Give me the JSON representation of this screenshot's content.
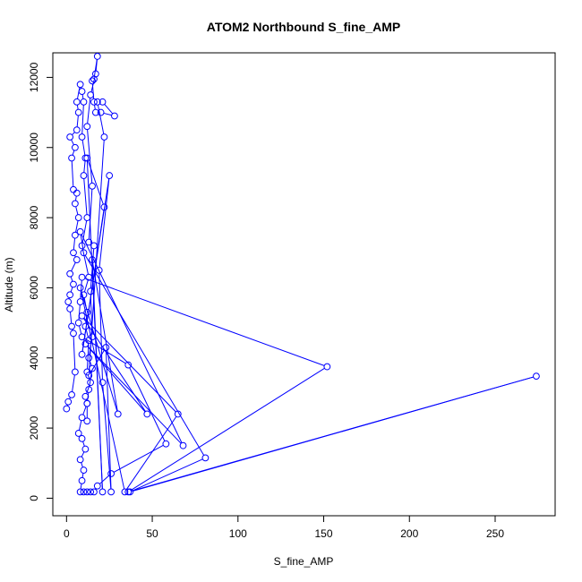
{
  "chart_data": {
    "type": "line",
    "title": "ATOM2 Northbound S_fine_AMP",
    "xlabel": "S_fine_AMP",
    "ylabel": "Altitude (m)",
    "xlim": [
      -8,
      285
    ],
    "ylim": [
      -500,
      12700
    ],
    "xticks": [
      0,
      50,
      100,
      150,
      200,
      250
    ],
    "yticks": [
      0,
      2000,
      4000,
      6000,
      8000,
      10000,
      12000
    ],
    "grid": false,
    "legend": "none",
    "color": "#0000ff",
    "series": [
      {
        "points": [
          [
            0,
            2550
          ],
          [
            1,
            2750
          ],
          [
            3,
            2950
          ],
          [
            5,
            3600
          ],
          [
            4,
            4700
          ],
          [
            3,
            4900
          ],
          [
            2,
            5400
          ],
          [
            1,
            5600
          ],
          [
            2,
            5800
          ],
          [
            4,
            6100
          ],
          [
            2,
            6400
          ],
          [
            6,
            6800
          ],
          [
            4,
            7000
          ],
          [
            5,
            7500
          ],
          [
            7,
            8000
          ],
          [
            5,
            8400
          ],
          [
            6,
            8700
          ],
          [
            4,
            8800
          ],
          [
            3,
            9700
          ],
          [
            5,
            10000
          ],
          [
            2,
            10300
          ],
          [
            6,
            10500
          ],
          [
            7,
            11000
          ],
          [
            6,
            11300
          ],
          [
            8,
            11800
          ],
          [
            9,
            11600
          ],
          [
            10,
            11300
          ],
          [
            9,
            10300
          ],
          [
            11,
            9700
          ],
          [
            10,
            9200
          ],
          [
            12,
            8000
          ],
          [
            9,
            7200
          ],
          [
            13,
            6300
          ],
          [
            10,
            5800
          ],
          [
            12,
            5300
          ],
          [
            11,
            4900
          ],
          [
            13,
            4500
          ],
          [
            12,
            3600
          ],
          [
            14,
            3300
          ],
          [
            11,
            2900
          ],
          [
            12,
            2700
          ],
          [
            9,
            2300
          ],
          [
            7,
            1850
          ],
          [
            9,
            1700
          ],
          [
            11,
            1400
          ],
          [
            8,
            1100
          ],
          [
            10,
            800
          ],
          [
            9,
            500
          ],
          [
            8,
            180
          ],
          [
            10,
            180
          ],
          [
            12,
            180
          ],
          [
            14,
            180
          ],
          [
            16,
            180
          ],
          [
            18,
            350
          ],
          [
            26,
            700
          ],
          [
            58,
            1550
          ],
          [
            36,
            3800
          ],
          [
            9,
            4600
          ],
          [
            7,
            5000
          ],
          [
            8,
            5600
          ],
          [
            9,
            6300
          ],
          [
            152,
            3750
          ],
          [
            36,
            180
          ],
          [
            274,
            3480
          ],
          [
            37,
            180
          ],
          [
            81,
            1150
          ],
          [
            10,
            7000
          ],
          [
            8,
            7600
          ],
          [
            68,
            1500
          ],
          [
            11,
            4400
          ],
          [
            47,
            2400
          ],
          [
            9,
            5200
          ],
          [
            65,
            2400
          ],
          [
            34,
            180
          ],
          [
            8,
            6000
          ],
          [
            30,
            2400
          ],
          [
            15,
            6800
          ],
          [
            21,
            180
          ],
          [
            12,
            9700
          ],
          [
            22,
            8300
          ],
          [
            9,
            4100
          ],
          [
            25,
            9200
          ],
          [
            19,
            6500
          ],
          [
            21,
            3300
          ],
          [
            26,
            180
          ],
          [
            23,
            4300
          ],
          [
            13,
            3500
          ],
          [
            22,
            10300
          ],
          [
            18,
            11300
          ],
          [
            21,
            11300
          ],
          [
            28,
            10900
          ],
          [
            20,
            11000
          ],
          [
            17,
            11000
          ],
          [
            16,
            11300
          ],
          [
            15,
            11900
          ],
          [
            16,
            11950
          ],
          [
            18,
            12600
          ],
          [
            17,
            12100
          ],
          [
            14,
            11500
          ],
          [
            12,
            10600
          ],
          [
            15,
            8900
          ],
          [
            13,
            7300
          ],
          [
            16,
            7200
          ],
          [
            14,
            5900
          ],
          [
            15,
            4600
          ],
          [
            13,
            4000
          ],
          [
            15,
            3700
          ],
          [
            13,
            3100
          ],
          [
            12,
            2700
          ],
          [
            12,
            2200
          ]
        ]
      }
    ]
  }
}
